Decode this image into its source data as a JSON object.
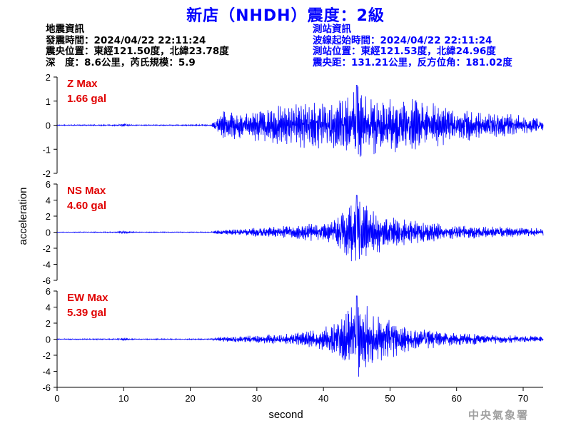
{
  "header": {
    "title": "新店（NHDH）震度：2級"
  },
  "earthquake_info": {
    "lines": [
      "地震資訊",
      "發震時間：2024/04/22 22:11:24",
      "震央位置：東經121.50度，北緯23.78度",
      "深　度：8.6公里，芮氏規模：5.9"
    ]
  },
  "station_info": {
    "lines": [
      "測站資訊",
      "波線起始時間：2024/04/22 22:11:24",
      "測站位置：東經121.53度，北緯24.96度",
      "震央距：131.21公里，反方位角：181.02度"
    ]
  },
  "agency": "中央氣象署",
  "colors": {
    "trace": "#0000ff",
    "max_label": "#e00000",
    "title": "#0000ff"
  },
  "chart_data": [
    {
      "type": "line",
      "component": "Z",
      "max_label": "Z Max",
      "max_value_label": "1.66 gal",
      "peak": 1.66,
      "ylim": [
        -2,
        2
      ],
      "yticks": [
        "2",
        "1",
        "0",
        "-1",
        "-2"
      ],
      "ytick_values": [
        2,
        1,
        0,
        -1,
        -2
      ],
      "envelope": [
        [
          0,
          0.02
        ],
        [
          9,
          0.03
        ],
        [
          10,
          0.07
        ],
        [
          11,
          0.04
        ],
        [
          12,
          0.02
        ],
        [
          23,
          0.03
        ],
        [
          24,
          0.3
        ],
        [
          25,
          0.6
        ],
        [
          30,
          0.7
        ],
        [
          35,
          0.9
        ],
        [
          40,
          1.0
        ],
        [
          43,
          1.3
        ],
        [
          45,
          1.66
        ],
        [
          48,
          1.3
        ],
        [
          50,
          1.3
        ],
        [
          54,
          1.4
        ],
        [
          56,
          1.0
        ],
        [
          60,
          0.7
        ],
        [
          66,
          0.55
        ],
        [
          70,
          0.4
        ],
        [
          73,
          0.3
        ]
      ]
    },
    {
      "type": "line",
      "component": "NS",
      "max_label": "NS Max",
      "max_value_label": "4.60 gal",
      "peak": 4.6,
      "ylim": [
        -6,
        6
      ],
      "yticks": [
        "6",
        "4",
        "2",
        "0",
        "-2",
        "-4",
        "-6"
      ],
      "ytick_values": [
        6,
        4,
        2,
        0,
        -2,
        -4,
        -6
      ],
      "envelope": [
        [
          0,
          0.04
        ],
        [
          9,
          0.06
        ],
        [
          10,
          0.25
        ],
        [
          11,
          0.1
        ],
        [
          12,
          0.05
        ],
        [
          23,
          0.06
        ],
        [
          24,
          0.25
        ],
        [
          30,
          0.6
        ],
        [
          36,
          1.0
        ],
        [
          40,
          1.3
        ],
        [
          42,
          1.8
        ],
        [
          44,
          3.8
        ],
        [
          45,
          4.6
        ],
        [
          47,
          3.5
        ],
        [
          49,
          2.2
        ],
        [
          52,
          1.8
        ],
        [
          56,
          1.3
        ],
        [
          60,
          0.9
        ],
        [
          65,
          0.8
        ],
        [
          70,
          0.6
        ],
        [
          73,
          0.5
        ]
      ]
    },
    {
      "type": "line",
      "component": "EW",
      "max_label": "EW Max",
      "max_value_label": "5.39 gal",
      "peak": 5.39,
      "ylim": [
        -6,
        6
      ],
      "yticks": [
        "6",
        "4",
        "2",
        "0",
        "-2",
        "-4",
        "-6"
      ],
      "ytick_values": [
        6,
        4,
        2,
        0,
        -2,
        -4,
        -6
      ],
      "envelope": [
        [
          0,
          0.06
        ],
        [
          9,
          0.08
        ],
        [
          10,
          0.2
        ],
        [
          11,
          0.1
        ],
        [
          12,
          0.06
        ],
        [
          23,
          0.07
        ],
        [
          24,
          0.3
        ],
        [
          30,
          0.5
        ],
        [
          36,
          0.8
        ],
        [
          40,
          1.5
        ],
        [
          42,
          2.5
        ],
        [
          44,
          4.0
        ],
        [
          45,
          5.39
        ],
        [
          47,
          4.0
        ],
        [
          49,
          3.0
        ],
        [
          52,
          1.8
        ],
        [
          56,
          1.2
        ],
        [
          60,
          0.8
        ],
        [
          65,
          0.6
        ],
        [
          70,
          0.45
        ],
        [
          73,
          0.4
        ]
      ]
    }
  ],
  "x_axis": {
    "label": "second",
    "ticks": [
      "0",
      "10",
      "20",
      "30",
      "40",
      "50",
      "60",
      "70"
    ],
    "tick_values": [
      0,
      10,
      20,
      30,
      40,
      50,
      60,
      70
    ],
    "xlim": [
      0,
      73
    ]
  },
  "y_axis": {
    "label": "acceleration"
  }
}
